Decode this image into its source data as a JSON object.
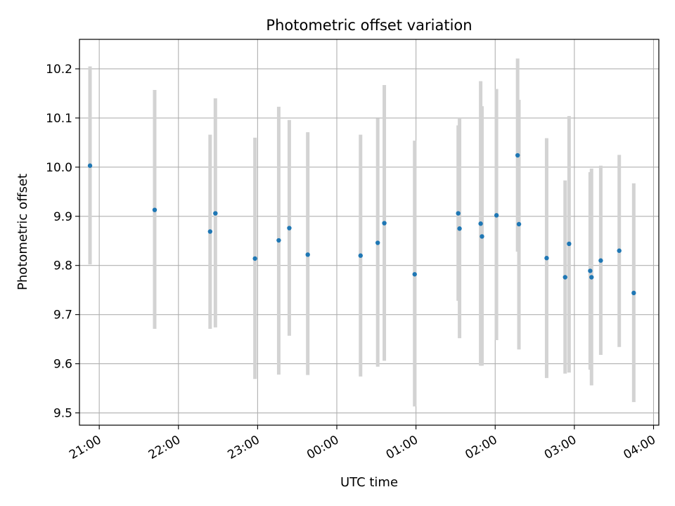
{
  "chart_data": {
    "type": "scatter",
    "title": "Photometric offset variation",
    "xlabel": "UTC time",
    "ylabel": "Photometric offset",
    "x_unit": "UTC clock time, wraps past midnight",
    "xlim": [
      "20:45",
      "04:04"
    ],
    "ylim": [
      9.475,
      10.26
    ],
    "x_ticks": [
      "21:00",
      "22:00",
      "23:00",
      "00:00",
      "01:00",
      "02:00",
      "03:00",
      "04:00"
    ],
    "y_ticks": [
      9.5,
      9.6,
      9.7,
      9.8,
      9.9,
      10.0,
      10.1,
      10.2
    ],
    "y_tick_labels": [
      "9.5",
      "9.6",
      "9.7",
      "9.8",
      "9.9",
      "10.0",
      "10.1",
      "10.2"
    ],
    "grid": true,
    "series_color": "#1f77b4",
    "errorbar_color": "#d3d3d3",
    "points": [
      {
        "x": "20:53",
        "y": 10.003,
        "ylow": 9.802,
        "yhigh": 10.205
      },
      {
        "x": "21:42",
        "y": 9.913,
        "ylow": 9.671,
        "yhigh": 10.157
      },
      {
        "x": "22:24",
        "y": 9.869,
        "ylow": 9.671,
        "yhigh": 10.066
      },
      {
        "x": "22:28",
        "y": 9.906,
        "ylow": 9.674,
        "yhigh": 10.14
      },
      {
        "x": "22:58",
        "y": 9.814,
        "ylow": 9.569,
        "yhigh": 10.06
      },
      {
        "x": "23:16",
        "y": 9.851,
        "ylow": 9.578,
        "yhigh": 10.123
      },
      {
        "x": "23:24",
        "y": 9.876,
        "ylow": 9.657,
        "yhigh": 10.096
      },
      {
        "x": "23:38",
        "y": 9.822,
        "ylow": 9.577,
        "yhigh": 10.071
      },
      {
        "x": "00:18",
        "y": 9.82,
        "ylow": 9.574,
        "yhigh": 10.066
      },
      {
        "x": "00:31",
        "y": 9.846,
        "ylow": 9.594,
        "yhigh": 10.099
      },
      {
        "x": "00:36",
        "y": 9.886,
        "ylow": 9.606,
        "yhigh": 10.167
      },
      {
        "x": "00:59",
        "y": 9.782,
        "ylow": 9.513,
        "yhigh": 10.054
      },
      {
        "x": "01:32",
        "y": 9.906,
        "ylow": 9.728,
        "yhigh": 10.085
      },
      {
        "x": "01:33",
        "y": 9.875,
        "ylow": 9.652,
        "yhigh": 10.1
      },
      {
        "x": "01:49",
        "y": 9.885,
        "ylow": 9.596,
        "yhigh": 10.175
      },
      {
        "x": "01:50",
        "y": 9.859,
        "ylow": 9.596,
        "yhigh": 10.124
      },
      {
        "x": "02:01",
        "y": 9.902,
        "ylow": 9.648,
        "yhigh": 10.159
      },
      {
        "x": "02:17",
        "y": 10.024,
        "ylow": 9.828,
        "yhigh": 10.221
      },
      {
        "x": "02:18",
        "y": 9.884,
        "ylow": 9.629,
        "yhigh": 10.137
      },
      {
        "x": "02:39",
        "y": 9.815,
        "ylow": 9.571,
        "yhigh": 10.059
      },
      {
        "x": "02:53",
        "y": 9.776,
        "ylow": 9.58,
        "yhigh": 9.973
      },
      {
        "x": "02:56",
        "y": 9.844,
        "ylow": 9.582,
        "yhigh": 10.104
      },
      {
        "x": "03:12",
        "y": 9.789,
        "ylow": 9.588,
        "yhigh": 9.99
      },
      {
        "x": "03:13",
        "y": 9.776,
        "ylow": 9.556,
        "yhigh": 9.997
      },
      {
        "x": "03:20",
        "y": 9.81,
        "ylow": 9.618,
        "yhigh": 10.003
      },
      {
        "x": "03:34",
        "y": 9.83,
        "ylow": 9.634,
        "yhigh": 10.025
      },
      {
        "x": "03:45",
        "y": 9.744,
        "ylow": 9.522,
        "yhigh": 9.967
      }
    ]
  }
}
